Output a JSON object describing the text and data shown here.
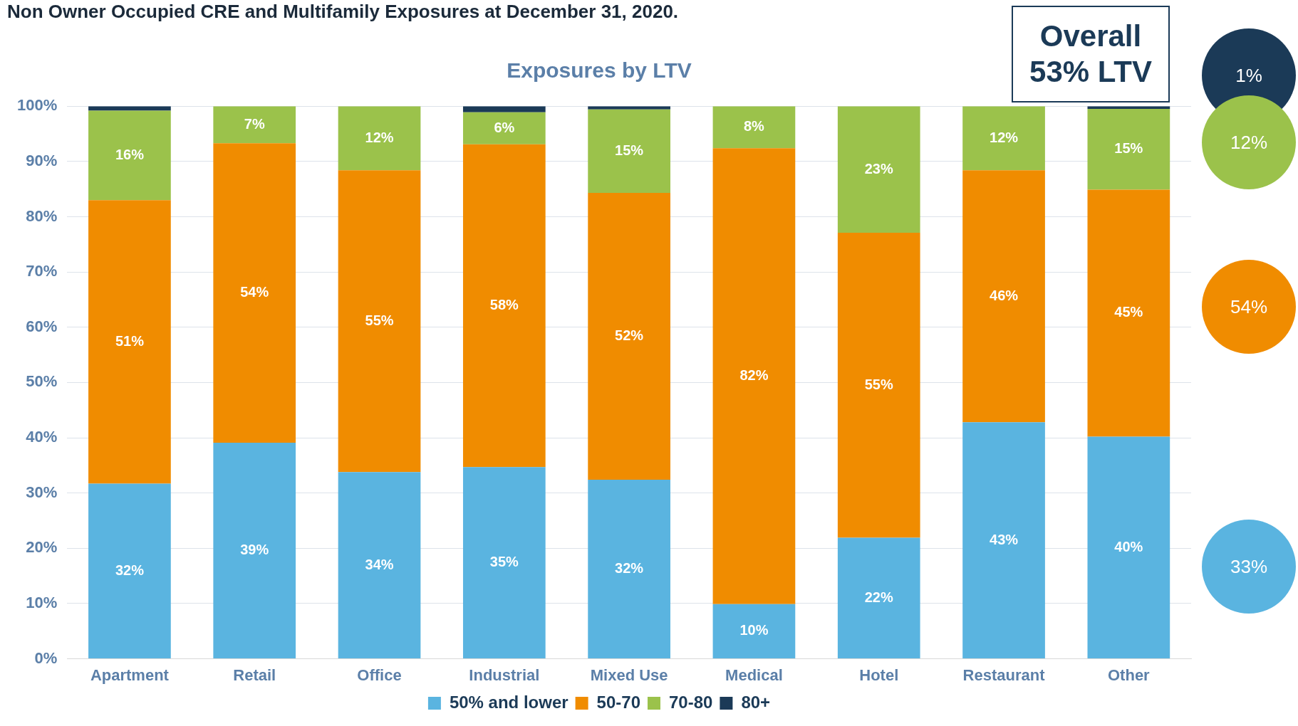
{
  "chart_data": {
    "type": "bar",
    "title": "Non Owner Occupied CRE and Multifamily Exposures at December 31, 2020.",
    "subtitle": "Exposures by LTV",
    "categories": [
      "Apartment",
      "Retail",
      "Office",
      "Industrial",
      "Mixed Use",
      "Medical",
      "Hotel",
      "Restaurant",
      "Other"
    ],
    "stacked": true,
    "series": [
      {
        "name": "50% and lower",
        "color": "#5ab4e0",
        "values": [
          31.7,
          39.1,
          33.8,
          34.7,
          32.4,
          9.9,
          21.9,
          42.8,
          40.2
        ],
        "value_labels": [
          "32%",
          "39%",
          "34%",
          "35%",
          "32%",
          "10%",
          "22%",
          "43%",
          "40%"
        ]
      },
      {
        "name": "50-70",
        "color": "#f08c00",
        "values": [
          51.3,
          54.2,
          54.6,
          58.4,
          51.9,
          82.5,
          55.2,
          45.6,
          44.7
        ],
        "value_labels": [
          "51%",
          "54%",
          "55%",
          "58%",
          "52%",
          "82%",
          "55%",
          "46%",
          "45%"
        ]
      },
      {
        "name": "70-80",
        "color": "#9bc24b",
        "values": [
          16.2,
          6.7,
          11.6,
          5.8,
          15.1,
          7.6,
          22.9,
          11.6,
          14.6
        ],
        "value_labels": [
          "16%",
          "7%",
          "12%",
          "6%",
          "15%",
          "8%",
          "23%",
          "12%",
          "15%"
        ]
      },
      {
        "name": "80+",
        "color": "#1b3a57",
        "values": [
          0.8,
          0,
          0,
          1.1,
          0.6,
          0,
          0,
          0,
          0.5
        ]
      }
    ],
    "ylim": [
      0,
      100
    ],
    "yticks": [
      {
        "value": 0,
        "label": "0%"
      },
      {
        "value": 10,
        "label": "10%"
      },
      {
        "value": 20,
        "label": "20%"
      },
      {
        "value": 30,
        "label": "30%"
      },
      {
        "value": 40,
        "label": "40%"
      },
      {
        "value": 50,
        "label": "50%"
      },
      {
        "value": 60,
        "label": "60%"
      },
      {
        "value": 70,
        "label": "70%"
      },
      {
        "value": 80,
        "label": "80%"
      },
      {
        "value": 90,
        "label": "90%"
      },
      {
        "value": 100,
        "label": "100%"
      }
    ],
    "grid": "y",
    "legend": "bottom",
    "annotations": [
      "Overall 53% LTV",
      "1%",
      "12%",
      "54%",
      "33%"
    ]
  }
}
